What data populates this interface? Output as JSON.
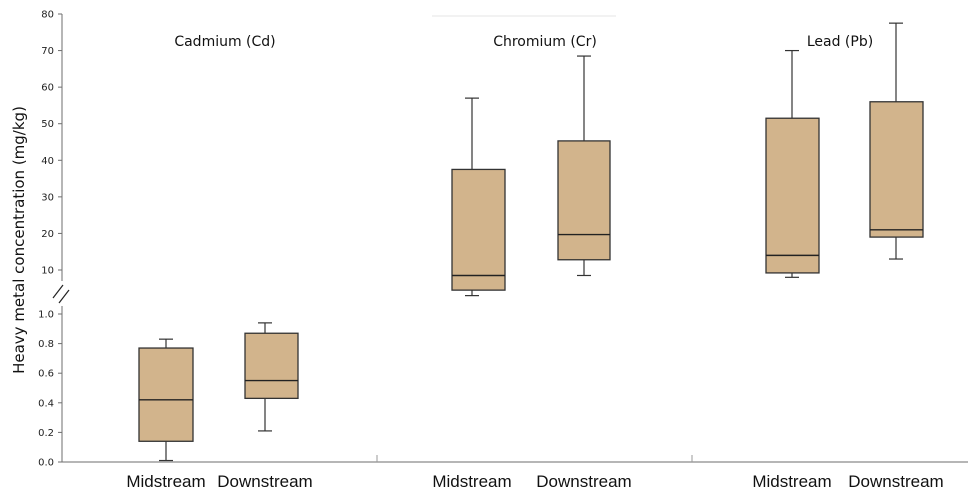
{
  "chart_data": {
    "type": "box",
    "ylabel": "Heavy metal concentration (mg/kg)",
    "y_axis_break": true,
    "ylim_lower": [
      0,
      1.0
    ],
    "yticks_lower": [
      "0.0",
      "0.2",
      "0.4",
      "0.6",
      "0.8",
      "1.0"
    ],
    "ylim_upper": [
      10,
      80
    ],
    "yticks_upper": [
      "10",
      "20",
      "30",
      "40",
      "50",
      "60",
      "70",
      "80"
    ],
    "box_color": "#d2b48c",
    "panels": [
      {
        "title": "Cadmium (Cd)",
        "scale": "lower",
        "boxes": [
          {
            "category": "Midstream",
            "whisker_low": 0.01,
            "q1": 0.14,
            "median": 0.42,
            "q3": 0.77,
            "whisker_high": 0.83
          },
          {
            "category": "Downstream",
            "whisker_low": 0.21,
            "q1": 0.43,
            "median": 0.55,
            "q3": 0.87,
            "whisker_high": 0.94
          }
        ]
      },
      {
        "title": "Chromium (Cr)",
        "scale": "upper",
        "boxes": [
          {
            "category": "Midstream",
            "whisker_low": 3.0,
            "q1": 4.5,
            "median": 8.5,
            "q3": 37.5,
            "whisker_high": 57.0
          },
          {
            "category": "Downstream",
            "whisker_low": 8.5,
            "q1": 12.8,
            "median": 19.7,
            "q3": 45.3,
            "whisker_high": 68.5
          }
        ]
      },
      {
        "title": "Lead (Pb)",
        "scale": "upper",
        "boxes": [
          {
            "category": "Midstream",
            "whisker_low": 8.0,
            "q1": 9.2,
            "median": 14.0,
            "q3": 51.5,
            "whisker_high": 70.0
          },
          {
            "category": "Downstream",
            "whisker_low": 13.0,
            "q1": 19.0,
            "median": 21.0,
            "q3": 56.0,
            "whisker_high": 77.5
          }
        ]
      }
    ]
  }
}
